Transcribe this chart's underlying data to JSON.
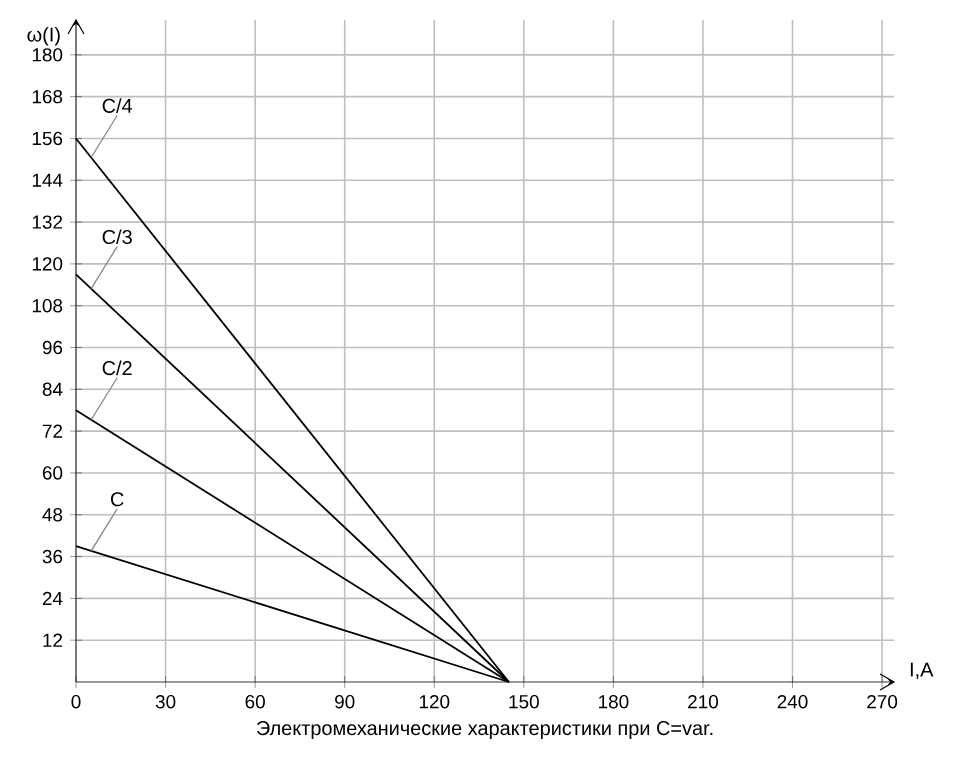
{
  "chart_data": {
    "type": "line",
    "title": "Электромеханические характеристики  при C=var.",
    "xlabel": "I,A",
    "ylabel": "ω(I)",
    "x": [
      0,
      145
    ],
    "series": [
      {
        "name": "C",
        "color": "#000000",
        "values": [
          39,
          0
        ]
      },
      {
        "name": "C/2",
        "color": "#000000",
        "values": [
          78,
          0
        ]
      },
      {
        "name": "C/3",
        "color": "#000000",
        "values": [
          117,
          0
        ]
      },
      {
        "name": "C/4",
        "color": "#000000",
        "values": [
          156,
          0
        ]
      }
    ],
    "xlim": [
      0,
      274
    ],
    "ylim": [
      0,
      190
    ],
    "xticks": [
      0,
      30,
      60,
      90,
      120,
      150,
      180,
      210,
      240,
      270
    ],
    "yticks": [
      12,
      24,
      36,
      48,
      60,
      72,
      84,
      96,
      108,
      120,
      132,
      144,
      156,
      168,
      180
    ],
    "grid": true,
    "legend": false,
    "marker": "none",
    "line_style": "solid"
  }
}
